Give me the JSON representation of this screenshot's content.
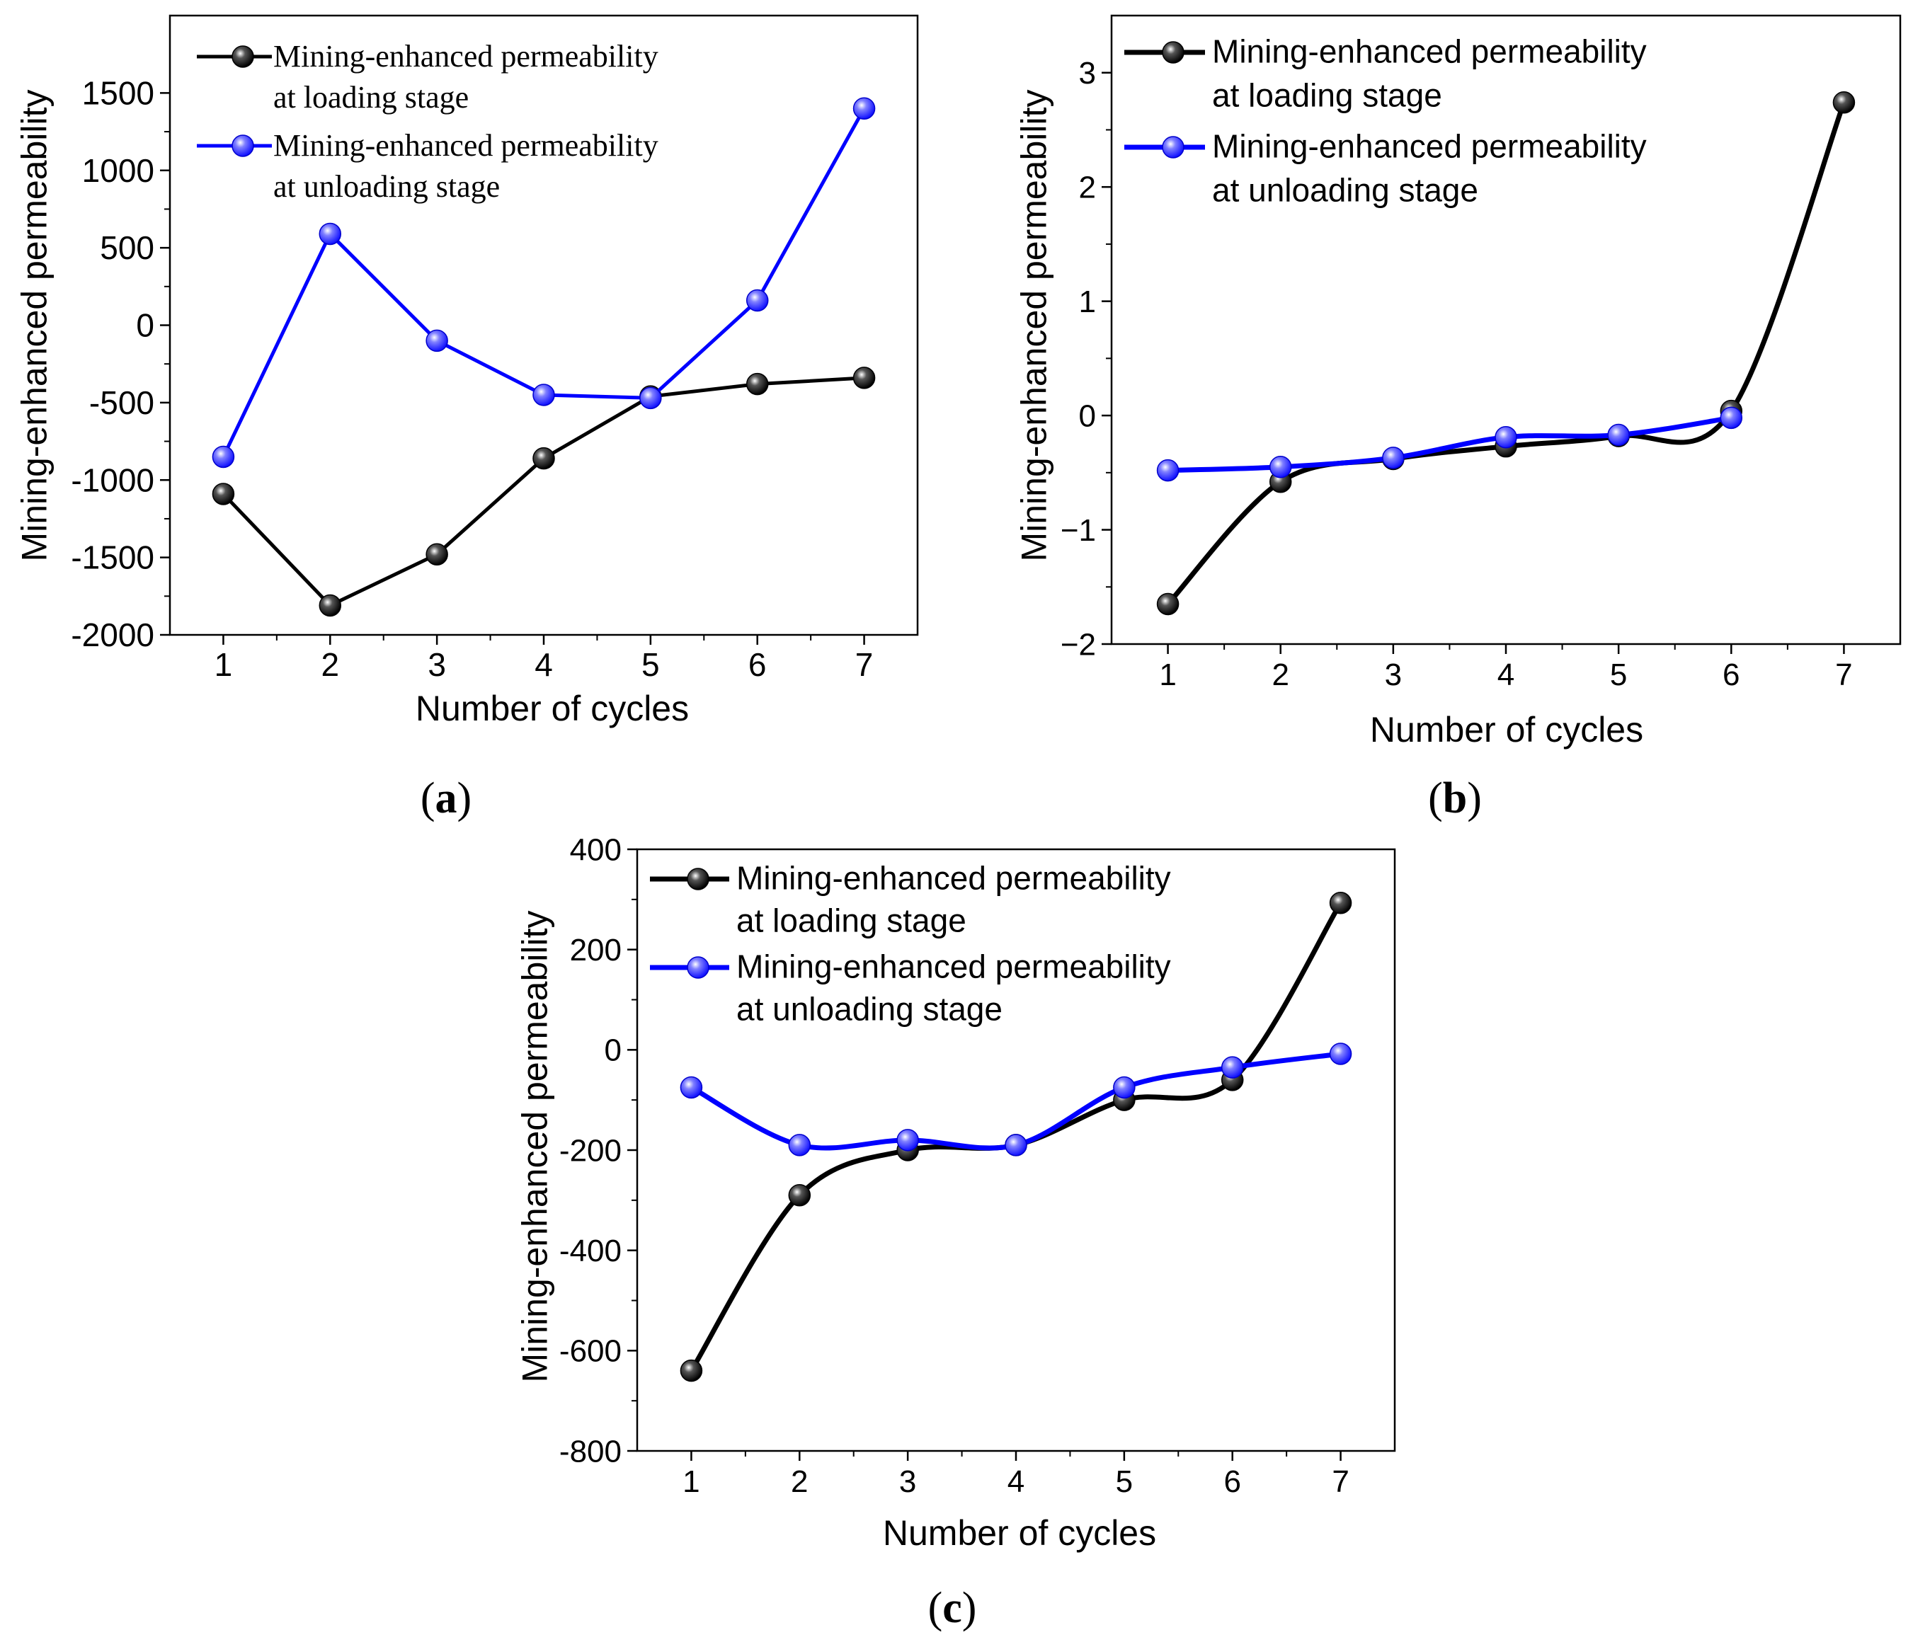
{
  "chart_data": [
    {
      "panel": "a",
      "panel_label": "a",
      "type": "line",
      "smooth": false,
      "categories": [
        "1",
        "2",
        "3",
        "4",
        "5",
        "6",
        "7"
      ],
      "x": [
        1,
        2,
        3,
        4,
        5,
        6,
        7
      ],
      "xlabel": "Number of cycles",
      "ylabel": "Mining-enhanced permeability",
      "xlim": [
        0.5,
        7.5
      ],
      "ylim": [
        -2000,
        2000
      ],
      "yticks": [
        1500,
        1000,
        500,
        0,
        -500,
        -1000,
        -1500,
        -2000
      ],
      "ytick_labels": [
        "1500",
        "1000",
        "500",
        "0",
        "-500",
        "-1000",
        "-1500",
        "-2000"
      ],
      "legend_position": "top-left",
      "series": [
        {
          "name": "Mining-enhanced permeability at loading stage",
          "label_line1": "Mining-enhanced permeability",
          "label_line2": "at loading stage",
          "color": "#000000",
          "values": [
            -1090,
            -1810,
            -1480,
            -860,
            -460,
            -380,
            -340
          ]
        },
        {
          "name": "Mining-enhanced permeability at unloading stage",
          "label_line1": "Mining-enhanced permeability",
          "label_line2": "at unloading stage",
          "color": "#0000ff",
          "values": [
            -850,
            590,
            -100,
            -450,
            -470,
            160,
            1400
          ]
        }
      ]
    },
    {
      "panel": "b",
      "panel_label": "b",
      "type": "line",
      "smooth": true,
      "categories": [
        "1",
        "2",
        "3",
        "4",
        "5",
        "6",
        "7"
      ],
      "xlabel": "Number of cycles",
      "ylabel": "Mining-enhanced permeability",
      "xlim": [
        0.5,
        7.5
      ],
      "ylim": [
        -2,
        3.5
      ],
      "yticks": [
        3,
        2,
        1,
        0,
        -1,
        -2
      ],
      "ytick_labels": [
        "3",
        "2",
        "1",
        "0",
        "−1",
        "−2"
      ],
      "legend_position": "top-left",
      "series": [
        {
          "name": "Mining-enhanced permeability at loading stage",
          "label_line1": "Mining-enhanced permeability",
          "label_line2": "at loading stage",
          "color": "#000000",
          "x": [
            1,
            2,
            3,
            4,
            5,
            6,
            7
          ],
          "values": [
            -1.65,
            -0.58,
            -0.38,
            -0.27,
            -0.18,
            0.04,
            2.74
          ]
        },
        {
          "name": "Mining-enhanced permeability at unloading stage",
          "label_line1": "Mining-enhanced permeability",
          "label_line2": "at unloading stage",
          "color": "#0000ff",
          "x": [
            1,
            2,
            3,
            4,
            5,
            6
          ],
          "values": [
            -0.48,
            -0.45,
            -0.37,
            -0.19,
            -0.17,
            -0.02
          ]
        }
      ]
    },
    {
      "panel": "c",
      "panel_label": "c",
      "type": "line",
      "smooth": true,
      "categories": [
        "1",
        "2",
        "3",
        "4",
        "5",
        "6",
        "7"
      ],
      "xlabel": "Number of cycles",
      "ylabel": "Mining-enhanced permeability",
      "xlim": [
        0.5,
        7.5
      ],
      "ylim": [
        -800,
        400
      ],
      "yticks": [
        400,
        200,
        0,
        -200,
        -400,
        -600,
        -800
      ],
      "ytick_labels": [
        "400",
        "200",
        "0",
        "-200",
        "-400",
        "-600",
        "-800"
      ],
      "legend_position": "top-left",
      "series": [
        {
          "name": "Mining-enhanced permeability at loading stage",
          "label_line1": "Mining-enhanced permeability",
          "label_line2": "at loading stage",
          "color": "#000000",
          "x": [
            1,
            2,
            3,
            4,
            5,
            6,
            7
          ],
          "values": [
            -640,
            -290,
            -200,
            -190,
            -100,
            -60,
            293
          ]
        },
        {
          "name": "Mining-enhanced permeability at unloading stage",
          "label_line1": "Mining-enhanced permeability",
          "label_line2": "at unloading stage",
          "color": "#0000ff",
          "x": [
            1,
            2,
            3,
            4,
            5,
            6,
            7
          ],
          "values": [
            -75,
            -190,
            -180,
            -190,
            -75,
            -35,
            -8
          ]
        }
      ]
    }
  ]
}
